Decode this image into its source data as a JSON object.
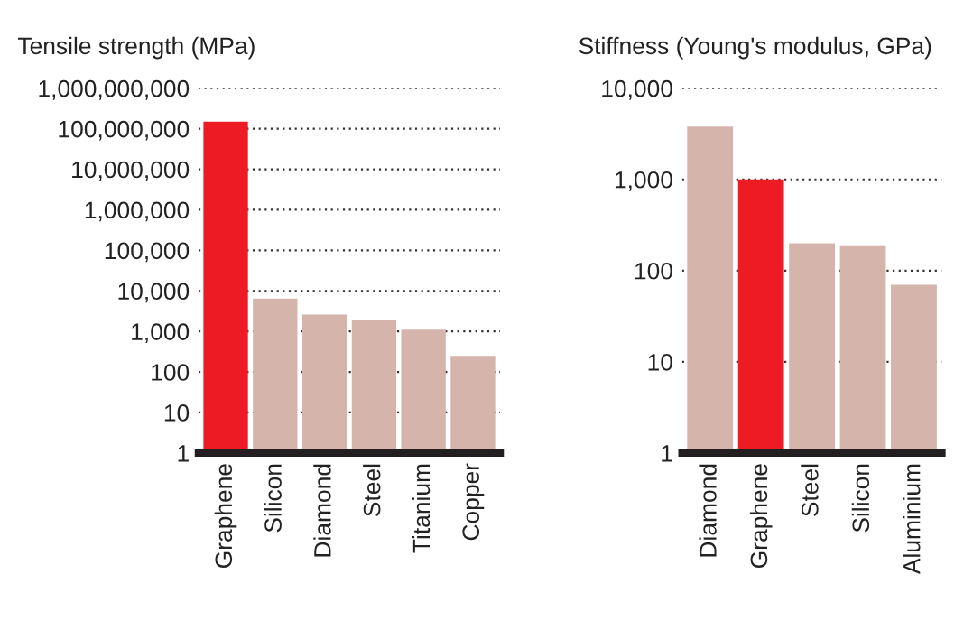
{
  "chart_data": [
    {
      "type": "bar",
      "title": "Tensile strength (MPa)",
      "categories": [
        "Graphene",
        "Silicon",
        "Diamond",
        "Steel",
        "Titanium",
        "Copper"
      ],
      "values": [
        150000000,
        6500,
        2600,
        1900,
        1100,
        250
      ],
      "colors": [
        "#ed1c24",
        "#d5b5ab",
        "#d5b5ab",
        "#d5b5ab",
        "#d5b5ab",
        "#d5b5ab"
      ],
      "log": "y",
      "ylim": [
        1,
        1000000000
      ],
      "yticks": [
        1,
        10,
        100,
        {
          "value": 1000,
          "label": "1,000"
        },
        {
          "value": 10000,
          "label": "10,000"
        },
        {
          "value": 100000,
          "label": "100,000"
        },
        {
          "value": 1000000,
          "label": "1,000,000"
        },
        {
          "value": 10000000,
          "label": "10,000,000"
        },
        {
          "value": 100000000,
          "label": "100,000,000"
        },
        {
          "value": 1000000000,
          "label": "1,000,000,000"
        }
      ],
      "grid": "y"
    },
    {
      "type": "bar",
      "title": "Stiffness (Young's modulus, GPa)",
      "categories": [
        "Diamond",
        "Graphene",
        "Steel",
        "Silicon",
        "Aluminium"
      ],
      "values": [
        3800,
        1000,
        200,
        190,
        70
      ],
      "colors": [
        "#d5b5ab",
        "#ed1c24",
        "#d5b5ab",
        "#d5b5ab",
        "#d5b5ab"
      ],
      "log": "y",
      "ylim": [
        1,
        10000
      ],
      "yticks": [
        1,
        10,
        100,
        {
          "value": 1000,
          "label": "1,000"
        },
        {
          "value": 10000,
          "label": "10,000"
        }
      ],
      "grid": "y"
    }
  ]
}
